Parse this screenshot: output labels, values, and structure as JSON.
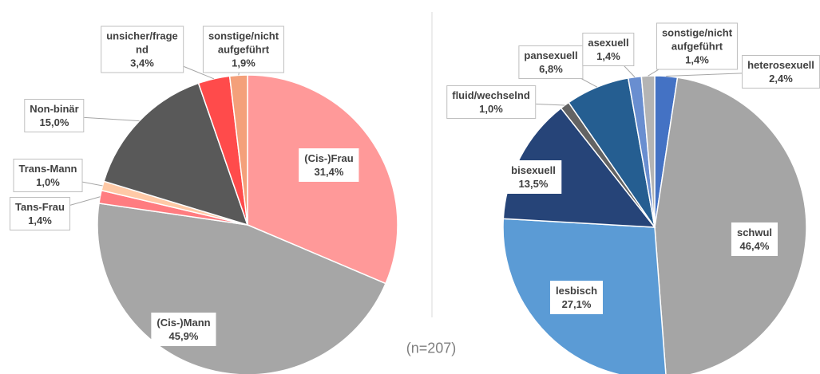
{
  "chart_data": [
    {
      "type": "pie",
      "categories": [
        "(Cis-)Frau",
        "(Cis-)Mann",
        "Tans-Frau",
        "Trans-Mann",
        "Non-binär",
        "unsicher/frage\nnd",
        "sonstige/nicht\naufgeführt"
      ],
      "values": [
        31.4,
        45.9,
        1.4,
        1.0,
        15.0,
        3.4,
        1.9
      ],
      "value_labels": [
        "31,4%",
        "45,9%",
        "1,4%",
        "1,0%",
        "15,0%",
        "3,4%",
        "1,9%"
      ],
      "colors": [
        "#ff9999",
        "#a6a6a6",
        "#ff7c80",
        "#ffc9a6",
        "#595959",
        "#ff4b4b",
        "#f4a07a"
      ]
    },
    {
      "type": "pie",
      "categories": [
        "heterosexuell",
        "schwul",
        "lesbisch",
        "bisexuell",
        "fluid/wechselnd",
        "pansexuell",
        "asexuell",
        "sonstige/nicht\naufgeführt"
      ],
      "values": [
        2.4,
        46.4,
        27.1,
        13.5,
        1.0,
        6.8,
        1.4,
        1.4
      ],
      "value_labels": [
        "2,4%",
        "46,4%",
        "27,1%",
        "13,5%",
        "1,0%",
        "6,8%",
        "1,4%",
        "1,4%"
      ],
      "colors": [
        "#4472c4",
        "#a5a5a5",
        "#5b9bd5",
        "#264478",
        "#636363",
        "#255e91",
        "#698ed0",
        "#b4b4b4"
      ]
    }
  ],
  "note": "(n=207)"
}
